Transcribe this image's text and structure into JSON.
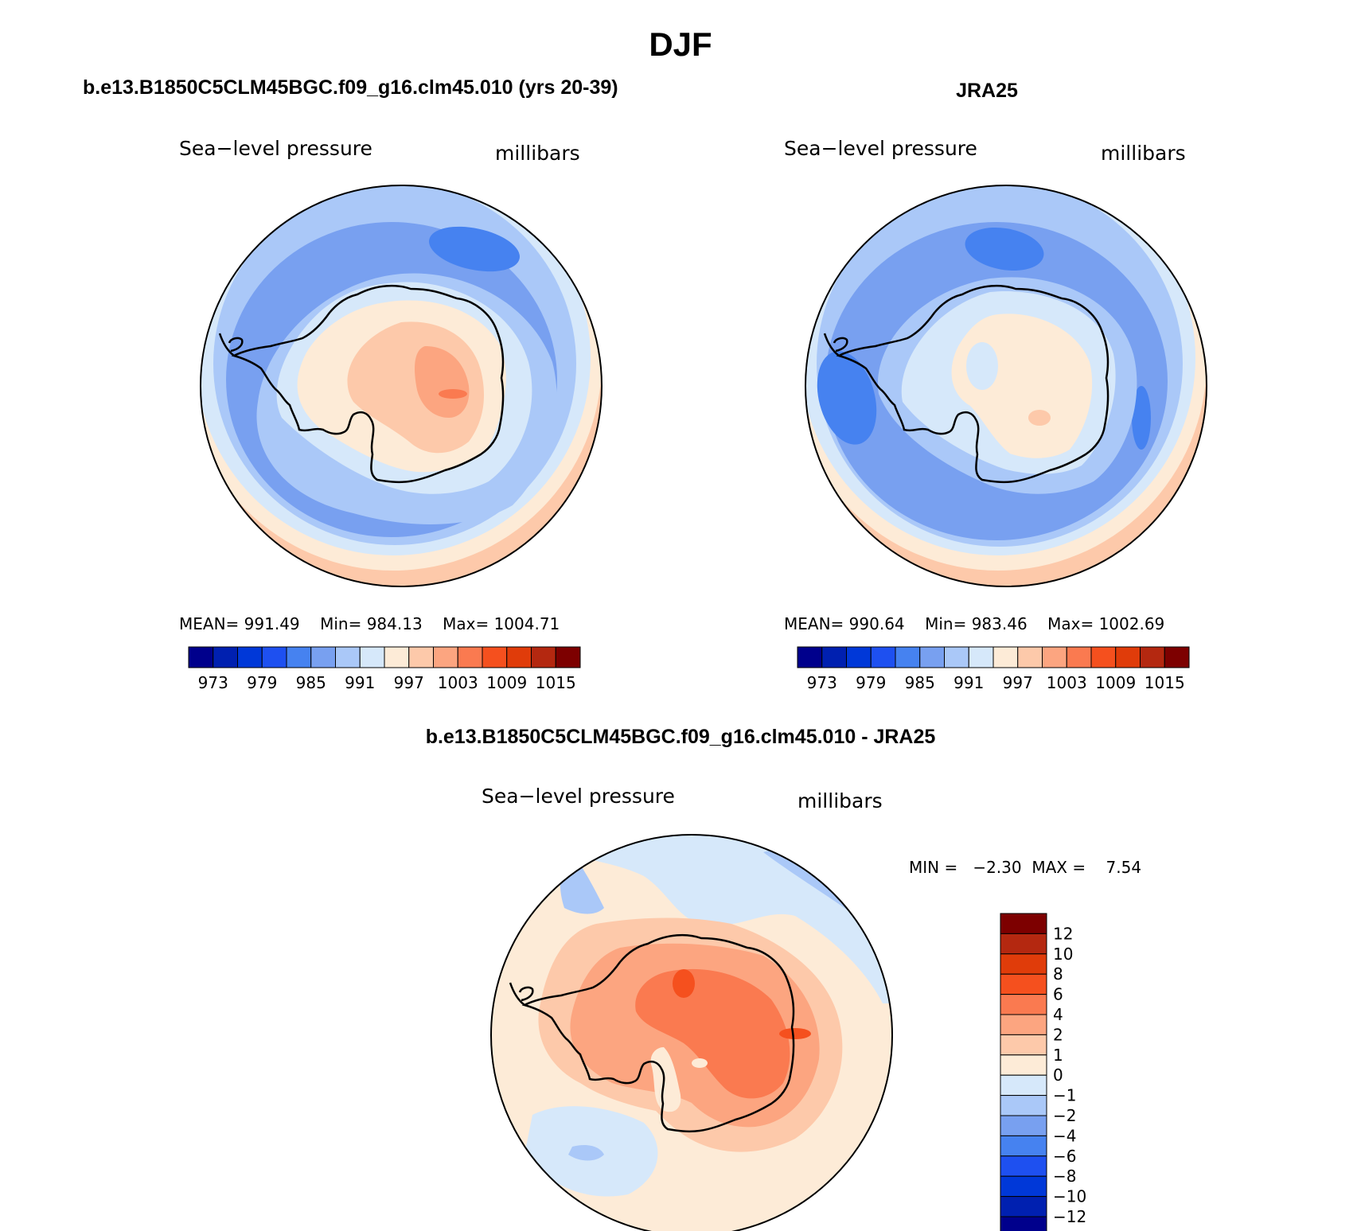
{
  "page_title": "DJF",
  "panels": [
    {
      "title": "b.e13.B1850C5CLM45BGC.f09_g16.clm45.010 (yrs 20-39)",
      "variable": "Sea−level pressure",
      "units": "millibars",
      "stats": {
        "mean_label": "MEAN=",
        "mean": "991.49",
        "min_label": "Min=",
        "min": "984.13",
        "max_label": "Max=",
        "max": "1004.71"
      }
    },
    {
      "title": "JRA25",
      "variable": "Sea−level pressure",
      "units": "millibars",
      "stats": {
        "mean_label": "MEAN=",
        "mean": "990.64",
        "min_label": "Min=",
        "min": "983.46",
        "max_label": "Max=",
        "max": "1002.69"
      }
    },
    {
      "title": "b.e13.B1850C5CLM45BGC.f09_g16.clm45.010 - JRA25",
      "variable": "Sea−level pressure",
      "units": "millibars",
      "minmax": {
        "min_label": "MIN =",
        "min": "−2.30",
        "max_label": "MAX =",
        "max": "7.54"
      }
    }
  ],
  "colorbar_abs": {
    "colors": [
      "#00008c",
      "#0020b0",
      "#0038d8",
      "#1e50f0",
      "#4682f0",
      "#78a0f0",
      "#aac8f8",
      "#d6e8fa",
      "#fdebd7",
      "#fdc9aa",
      "#fca580",
      "#fa7a50",
      "#f5501e",
      "#e03c0a",
      "#b42810",
      "#7d0000"
    ],
    "labels": [
      "973",
      "979",
      "985",
      "991",
      "997",
      "1003",
      "1009",
      "1015"
    ]
  },
  "colorbar_diff": {
    "colors_top_to_bottom": [
      "#7d0000",
      "#b42810",
      "#e03c0a",
      "#f5501e",
      "#fa7a50",
      "#fca580",
      "#fdc9aa",
      "#fdebd7",
      "#d6e8fa",
      "#aac8f8",
      "#78a0f0",
      "#4682f0",
      "#1e50f0",
      "#0038d8",
      "#0020b0",
      "#00008c"
    ],
    "labels": [
      "12",
      "10",
      "8",
      "6",
      "4",
      "2",
      "1",
      "0",
      "−1",
      "−2",
      "−4",
      "−6",
      "−8",
      "−10",
      "−12"
    ]
  }
}
